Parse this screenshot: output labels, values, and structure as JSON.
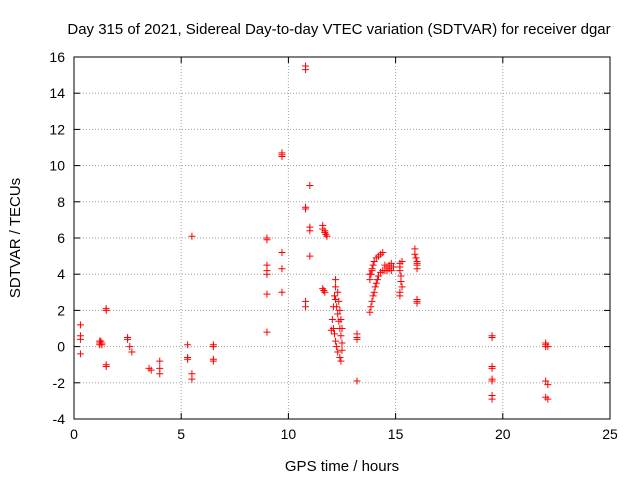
{
  "chart_data": {
    "type": "scatter",
    "title": "Day 315 of 2021, Sidereal Day-to-day VTEC variation (SDTVAR) for receiver dgar",
    "xlabel": "GPS time / hours",
    "ylabel": "SDTVAR / TECUs",
    "xlim": [
      0,
      25
    ],
    "ylim": [
      -4,
      16
    ],
    "xticks": [
      0,
      5,
      10,
      15,
      20,
      25
    ],
    "yticks": [
      -4,
      -2,
      0,
      2,
      4,
      6,
      8,
      10,
      12,
      14,
      16
    ],
    "grid": true,
    "marker": "plus",
    "color": "#ff0000",
    "series": [
      {
        "name": "SDTVAR",
        "points": [
          [
            0.3,
            1.2
          ],
          [
            0.3,
            0.6
          ],
          [
            0.3,
            0.4
          ],
          [
            0.3,
            -0.4
          ],
          [
            1.2,
            0.3
          ],
          [
            1.2,
            0.2
          ],
          [
            1.2,
            0.1
          ],
          [
            1.25,
            0.3
          ],
          [
            1.3,
            0.2
          ],
          [
            1.3,
            0.1
          ],
          [
            1.5,
            2.1
          ],
          [
            1.5,
            2.0
          ],
          [
            1.5,
            -1.0
          ],
          [
            1.5,
            -1.1
          ],
          [
            2.5,
            0.5
          ],
          [
            2.5,
            0.4
          ],
          [
            2.6,
            0.0
          ],
          [
            2.7,
            -0.3
          ],
          [
            3.5,
            -1.2
          ],
          [
            3.6,
            -1.3
          ],
          [
            4.0,
            -0.8
          ],
          [
            4.0,
            -1.2
          ],
          [
            4.0,
            -1.5
          ],
          [
            5.3,
            0.1
          ],
          [
            5.3,
            -0.6
          ],
          [
            5.3,
            -0.7
          ],
          [
            5.5,
            -1.5
          ],
          [
            5.5,
            -1.8
          ],
          [
            5.5,
            6.1
          ],
          [
            6.5,
            0.1
          ],
          [
            6.5,
            0.0
          ],
          [
            6.5,
            -0.7
          ],
          [
            6.5,
            -0.8
          ],
          [
            9.0,
            6.0
          ],
          [
            9.0,
            5.9
          ],
          [
            9.0,
            4.5
          ],
          [
            9.0,
            4.2
          ],
          [
            9.0,
            4.0
          ],
          [
            9.0,
            2.9
          ],
          [
            9.0,
            0.8
          ],
          [
            9.7,
            10.7
          ],
          [
            9.7,
            10.6
          ],
          [
            9.7,
            10.5
          ],
          [
            9.7,
            5.2
          ],
          [
            9.7,
            4.3
          ],
          [
            9.7,
            3.0
          ],
          [
            10.8,
            15.5
          ],
          [
            10.8,
            15.3
          ],
          [
            10.8,
            7.7
          ],
          [
            10.8,
            7.6
          ],
          [
            10.8,
            2.5
          ],
          [
            10.8,
            2.2
          ],
          [
            11.0,
            8.9
          ],
          [
            11.0,
            6.6
          ],
          [
            11.0,
            6.4
          ],
          [
            11.0,
            5.0
          ],
          [
            11.6,
            6.7
          ],
          [
            11.6,
            6.5
          ],
          [
            11.7,
            6.4
          ],
          [
            11.7,
            6.3
          ],
          [
            11.75,
            6.2
          ],
          [
            11.8,
            6.1
          ],
          [
            11.6,
            3.2
          ],
          [
            11.65,
            3.1
          ],
          [
            11.7,
            3.0
          ],
          [
            12.0,
            0.9
          ],
          [
            12.05,
            1.5
          ],
          [
            12.1,
            2.2
          ],
          [
            12.15,
            2.8
          ],
          [
            12.2,
            3.3
          ],
          [
            12.2,
            3.7
          ],
          [
            12.1,
            1.0
          ],
          [
            12.15,
            0.7
          ],
          [
            12.2,
            0.3
          ],
          [
            12.25,
            0.0
          ],
          [
            12.3,
            -0.3
          ],
          [
            12.4,
            -0.6
          ],
          [
            12.45,
            -0.8
          ],
          [
            12.2,
            2.6
          ],
          [
            12.25,
            2.2
          ],
          [
            12.3,
            1.8
          ],
          [
            12.35,
            1.4
          ],
          [
            12.4,
            1.0
          ],
          [
            12.45,
            0.6
          ],
          [
            12.5,
            0.2
          ],
          [
            12.5,
            -0.2
          ],
          [
            12.3,
            3.0
          ],
          [
            12.35,
            2.5
          ],
          [
            12.4,
            2.0
          ],
          [
            12.45,
            1.5
          ],
          [
            12.5,
            1.0
          ],
          [
            13.2,
            0.7
          ],
          [
            13.2,
            0.5
          ],
          [
            13.2,
            0.4
          ],
          [
            13.2,
            -1.9
          ],
          [
            13.8,
            1.9
          ],
          [
            13.85,
            2.2
          ],
          [
            13.9,
            2.5
          ],
          [
            13.95,
            2.8
          ],
          [
            14.0,
            3.0
          ],
          [
            14.05,
            3.3
          ],
          [
            14.1,
            3.5
          ],
          [
            14.15,
            3.7
          ],
          [
            14.2,
            3.9
          ],
          [
            14.3,
            4.1
          ],
          [
            14.4,
            4.2
          ],
          [
            13.8,
            3.7
          ],
          [
            13.85,
            4.0
          ],
          [
            13.9,
            4.3
          ],
          [
            13.95,
            4.5
          ],
          [
            14.0,
            4.7
          ],
          [
            14.1,
            4.9
          ],
          [
            14.2,
            5.0
          ],
          [
            14.3,
            5.1
          ],
          [
            14.4,
            5.2
          ],
          [
            13.8,
            4.0
          ],
          [
            13.9,
            4.2
          ],
          [
            14.5,
            4.5
          ],
          [
            14.6,
            4.4
          ],
          [
            14.7,
            4.3
          ],
          [
            14.8,
            4.2
          ],
          [
            14.9,
            4.4
          ],
          [
            14.6,
            4.2
          ],
          [
            14.7,
            4.5
          ],
          [
            14.8,
            4.6
          ],
          [
            14.5,
            4.2
          ],
          [
            15.2,
            4.6
          ],
          [
            15.2,
            4.4
          ],
          [
            15.2,
            4.2
          ],
          [
            15.25,
            3.9
          ],
          [
            15.25,
            3.6
          ],
          [
            15.3,
            3.3
          ],
          [
            15.2,
            3.0
          ],
          [
            15.2,
            2.8
          ],
          [
            15.3,
            4.7
          ],
          [
            15.9,
            5.4
          ],
          [
            15.9,
            5.1
          ],
          [
            15.95,
            4.9
          ],
          [
            16.0,
            4.7
          ],
          [
            16.0,
            4.5
          ],
          [
            16.0,
            4.3
          ],
          [
            16.0,
            4.6
          ],
          [
            16.0,
            2.6
          ],
          [
            16.0,
            2.5
          ],
          [
            16.0,
            2.4
          ],
          [
            19.5,
            0.6
          ],
          [
            19.5,
            0.5
          ],
          [
            19.5,
            -1.1
          ],
          [
            19.5,
            -1.2
          ],
          [
            19.5,
            -1.8
          ],
          [
            19.5,
            -1.9
          ],
          [
            19.5,
            -2.7
          ],
          [
            19.5,
            -2.9
          ],
          [
            22.0,
            0.2
          ],
          [
            22.0,
            0.1
          ],
          [
            22.0,
            0.0
          ],
          [
            22.1,
            0.0
          ],
          [
            22.0,
            -1.9
          ],
          [
            22.1,
            -2.1
          ],
          [
            22.0,
            -2.8
          ],
          [
            22.1,
            -2.9
          ]
        ]
      }
    ]
  }
}
